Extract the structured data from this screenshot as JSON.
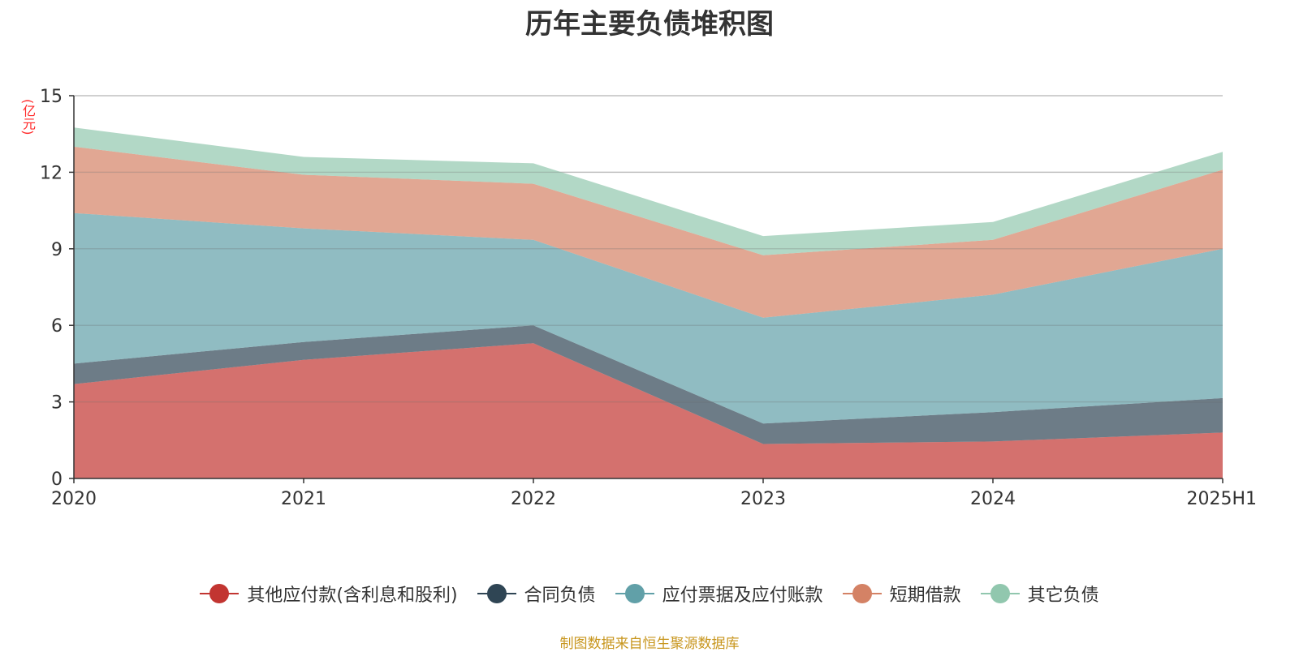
{
  "chart_data": {
    "type": "area",
    "stacked": true,
    "title": "历年主要负债堆积图",
    "unit_label": "(亿元)",
    "categories": [
      "2020",
      "2021",
      "2022",
      "2023",
      "2024",
      "2025H1"
    ],
    "ylim": [
      0,
      15
    ],
    "yticks": [
      0,
      3,
      6,
      9,
      12,
      15
    ],
    "grid": true,
    "legend_position": "bottom",
    "series": [
      {
        "name": "其他应付款(含利息和股利)",
        "color": "#c23531",
        "values": [
          3.7,
          4.65,
          5.3,
          1.35,
          1.45,
          1.8
        ]
      },
      {
        "name": "合同负债",
        "color": "#2f4554",
        "values": [
          0.8,
          0.7,
          0.7,
          0.8,
          1.15,
          1.35
        ]
      },
      {
        "name": "应付票据及应付账款",
        "color": "#61a0a8",
        "values": [
          5.9,
          4.45,
          3.35,
          4.15,
          4.6,
          5.85
        ]
      },
      {
        "name": "短期借款",
        "color": "#d48265",
        "values": [
          2.6,
          2.1,
          2.2,
          2.45,
          2.15,
          3.1
        ]
      },
      {
        "name": "其它负债",
        "color": "#91c7ae",
        "values": [
          0.75,
          0.7,
          0.8,
          0.75,
          0.7,
          0.7
        ]
      }
    ],
    "source": "制图数据来自恒生聚源数据库"
  }
}
